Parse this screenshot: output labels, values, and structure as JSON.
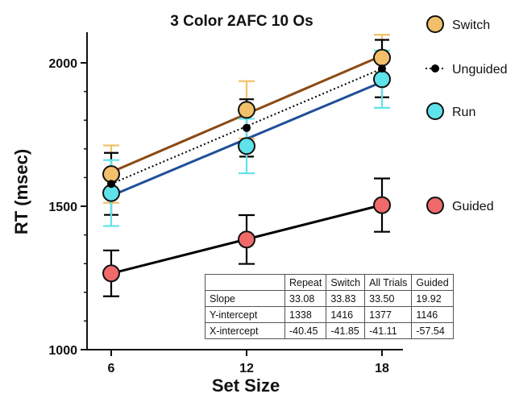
{
  "chart_data": {
    "type": "line",
    "title": "3 Color 2AFC 10 Os",
    "xlabel": "Set Size",
    "ylabel": "RT (msec)",
    "x": [
      6,
      12,
      18
    ],
    "x_tick_labels": [
      "6",
      "12",
      "18"
    ],
    "ylim": [
      1000,
      2100
    ],
    "y_ticks": [
      1000,
      1500,
      2000
    ],
    "y_tick_labels": [
      "1000",
      "1500",
      "2000"
    ],
    "grid": false,
    "legend_position": "right",
    "series": [
      {
        "name": "Switch",
        "key": "switch",
        "values": [
          1612,
          1836,
          2018
        ],
        "errors": [
          100,
          100,
          80
        ],
        "fit": {
          "slope": 33.83,
          "intercept": 1416
        },
        "marker_color": "#f2c06a",
        "line_color": "#8b4a12",
        "error_color": "#f2c06a",
        "line_style": "solid",
        "marker": "circle-large"
      },
      {
        "name": "Unguided",
        "key": "unguided",
        "values": [
          1578,
          1773,
          1980
        ],
        "errors": [
          108,
          100,
          100
        ],
        "fit": {
          "slope": 33.5,
          "intercept": 1377
        },
        "marker_color": "#000000",
        "line_color": "#000000",
        "error_color": "#000000",
        "line_style": "dotted",
        "marker": "circle-small"
      },
      {
        "name": "Run",
        "key": "run",
        "values": [
          1546,
          1710,
          1943
        ],
        "errors": [
          115,
          95,
          100
        ],
        "fit": {
          "slope": 33.08,
          "intercept": 1338
        },
        "marker_color": "#5fe3ea",
        "line_color": "#1f4f9a",
        "error_color": "#5fe3ea",
        "line_style": "solid",
        "marker": "circle-large"
      },
      {
        "name": "Guided",
        "key": "guided",
        "values": [
          1266,
          1384,
          1504
        ],
        "errors": [
          80,
          85,
          93
        ],
        "fit": {
          "slope": 19.92,
          "intercept": 1146
        },
        "marker_color": "#f06a6a",
        "line_color": "#000000",
        "error_color": "#000000",
        "line_style": "solid",
        "marker": "circle-large"
      }
    ],
    "table": {
      "headers": [
        "",
        "Repeat",
        "Switch",
        "All Trials",
        "Guided"
      ],
      "rows": [
        [
          "Slope",
          "33.08",
          "33.83",
          "33.50",
          "19.92"
        ],
        [
          "Y-intercept",
          "1338",
          "1416",
          "1377",
          "1146"
        ],
        [
          "X-intercept",
          "-40.45",
          "-41.85",
          "-41.11",
          "-57.54"
        ]
      ]
    }
  }
}
